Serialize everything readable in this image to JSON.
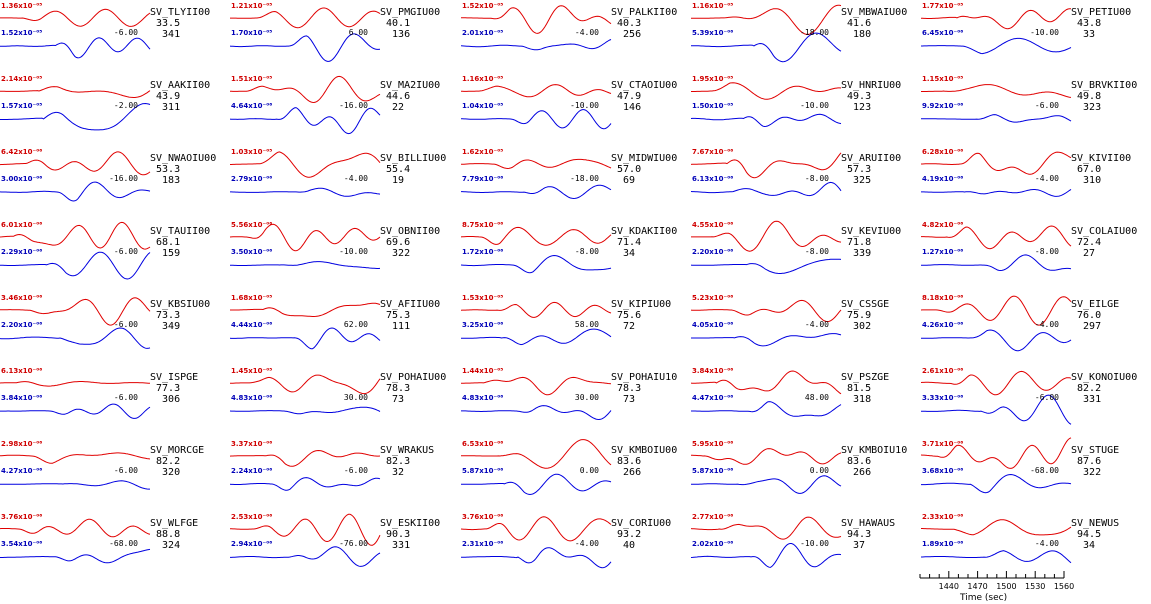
{
  "chart_data": {
    "type": "line",
    "title": "",
    "xlabel": "Time (sec)",
    "ylabel": "",
    "xaxis": {
      "ticks": [
        1440,
        1470,
        1500,
        1530,
        1560
      ],
      "range": [
        1410,
        1560
      ]
    },
    "colors": {
      "observed": "#e00000",
      "synthetic": "#0000e0"
    },
    "stations": [
      {
        "name": "SV_TLYII00",
        "dist": "33.5",
        "az": "341",
        "amp_obs": "1.36x10⁻⁰⁵",
        "amp_syn": "1.52x10⁻⁰⁵",
        "shift": "-6.00",
        "seed": 1
      },
      {
        "name": "SV_PMGIU00",
        "dist": "40.1",
        "az": "136",
        "amp_obs": "1.21x10⁻⁰⁵",
        "amp_syn": "1.70x10⁻⁰⁵",
        "shift": "6.00",
        "seed": 2
      },
      {
        "name": "SV_PALKII00",
        "dist": "40.3",
        "az": "256",
        "amp_obs": "1.52x10⁻⁰⁵",
        "amp_syn": "2.01x10⁻⁰⁵",
        "shift": "-4.00",
        "seed": 3
      },
      {
        "name": "SV_MBWAIU00",
        "dist": "41.6",
        "az": "180",
        "amp_obs": "1.16x10⁻⁰⁵",
        "amp_syn": "5.39x10⁻⁰⁶",
        "shift": "-18.00",
        "seed": 4
      },
      {
        "name": "SV_PETIU00",
        "dist": "43.8",
        "az": "33",
        "amp_obs": "1.77x10⁻⁰⁵",
        "amp_syn": "6.45x10⁻⁰⁶",
        "shift": "-10.00",
        "seed": 5
      },
      {
        "name": "SV_AAKII00",
        "dist": "43.9",
        "az": "311",
        "amp_obs": "2.14x10⁻⁰⁵",
        "amp_syn": "1.57x10⁻⁰⁵",
        "shift": "-2.00",
        "seed": 6
      },
      {
        "name": "SV_MA2IU00",
        "dist": "44.6",
        "az": "22",
        "amp_obs": "1.51x10⁻⁰⁵",
        "amp_syn": "4.64x10⁻⁰⁶",
        "shift": "-16.00",
        "seed": 7
      },
      {
        "name": "SV_CTAOIU00",
        "dist": "47.9",
        "az": "146",
        "amp_obs": "1.16x10⁻⁰⁵",
        "amp_syn": "1.04x10⁻⁰⁵",
        "shift": "-10.00",
        "seed": 8
      },
      {
        "name": "SV_HNRIU00",
        "dist": "49.3",
        "az": "123",
        "amp_obs": "1.95x10⁻⁰⁵",
        "amp_syn": "1.50x10⁻⁰⁵",
        "shift": "-10.00",
        "seed": 9
      },
      {
        "name": "SV_BRVKII00",
        "dist": "49.8",
        "az": "323",
        "amp_obs": "1.15x10⁻⁰⁵",
        "amp_syn": "9.92x10⁻⁰⁶",
        "shift": "-6.00",
        "seed": 10
      },
      {
        "name": "SV_NWAOIU00",
        "dist": "53.3",
        "az": "183",
        "amp_obs": "6.42x10⁻⁰⁶",
        "amp_syn": "3.00x10⁻⁰⁶",
        "shift": "-16.00",
        "seed": 11
      },
      {
        "name": "SV_BILLIU00",
        "dist": "55.4",
        "az": "19",
        "amp_obs": "1.03x10⁻⁰⁵",
        "amp_syn": "2.79x10⁻⁰⁶",
        "shift": "-4.00",
        "seed": 12
      },
      {
        "name": "SV_MIDWIU00",
        "dist": "57.0",
        "az": "69",
        "amp_obs": "1.62x10⁻⁰⁵",
        "amp_syn": "7.79x10⁻⁰⁶",
        "shift": "-18.00",
        "seed": 13
      },
      {
        "name": "SV_ARUII00",
        "dist": "57.3",
        "az": "325",
        "amp_obs": "7.67x10⁻⁰⁶",
        "amp_syn": "6.13x10⁻⁰⁶",
        "shift": "-8.00",
        "seed": 14
      },
      {
        "name": "SV_KIVII00",
        "dist": "67.0",
        "az": "310",
        "amp_obs": "6.28x10⁻⁰⁶",
        "amp_syn": "4.19x10⁻⁰⁶",
        "shift": "-4.00",
        "seed": 15
      },
      {
        "name": "SV_TAUII00",
        "dist": "68.1",
        "az": "159",
        "amp_obs": "6.01x10⁻⁰⁶",
        "amp_syn": "2.29x10⁻⁰⁶",
        "shift": "-6.00",
        "seed": 16
      },
      {
        "name": "SV_OBNII00",
        "dist": "69.6",
        "az": "322",
        "amp_obs": "5.56x10⁻⁰⁶",
        "amp_syn": "3.50x10⁻⁰⁶",
        "shift": "-10.00",
        "seed": 17
      },
      {
        "name": "SV_KDAKII00",
        "dist": "71.4",
        "az": "34",
        "amp_obs": "8.75x10⁻⁰⁶",
        "amp_syn": "1.72x10⁻⁰⁶",
        "shift": "-8.00",
        "seed": 18
      },
      {
        "name": "SV_KEVIU00",
        "dist": "71.8",
        "az": "339",
        "amp_obs": "4.55x10⁻⁰⁶",
        "amp_syn": "2.20x10⁻⁰⁶",
        "shift": "-8.00",
        "seed": 19
      },
      {
        "name": "SV_COLAIU00",
        "dist": "72.4",
        "az": "27",
        "amp_obs": "4.82x10⁻⁰⁶",
        "amp_syn": "1.27x10⁻⁰⁶",
        "shift": "-8.00",
        "seed": 20
      },
      {
        "name": "SV_KBSIU00",
        "dist": "73.3",
        "az": "349",
        "amp_obs": "3.46x10⁻⁰⁶",
        "amp_syn": "2.20x10⁻⁰⁶",
        "shift": "-6.00",
        "seed": 21
      },
      {
        "name": "SV_AFIIU00",
        "dist": "75.3",
        "az": "111",
        "amp_obs": "1.68x10⁻⁰⁵",
        "amp_syn": "4.44x10⁻⁰⁶",
        "shift": "62.00",
        "seed": 22
      },
      {
        "name": "SV_KIPIU00",
        "dist": "75.6",
        "az": "72",
        "amp_obs": "1.53x10⁻⁰⁵",
        "amp_syn": "3.25x10⁻⁰⁶",
        "shift": "58.00",
        "seed": 23
      },
      {
        "name": "SV_CSSGE",
        "dist": "75.9",
        "az": "302",
        "amp_obs": "5.23x10⁻⁰⁶",
        "amp_syn": "4.05x10⁻⁰⁶",
        "shift": "-4.00",
        "seed": 24
      },
      {
        "name": "SV_EILGE",
        "dist": "76.0",
        "az": "297",
        "amp_obs": "8.18x10⁻⁰⁶",
        "amp_syn": "4.26x10⁻⁰⁶",
        "shift": "-4.00",
        "seed": 25
      },
      {
        "name": "SV_ISPGE",
        "dist": "77.3",
        "az": "306",
        "amp_obs": "6.13x10⁻⁰⁶",
        "amp_syn": "3.84x10⁻⁰⁶",
        "shift": "-6.00",
        "seed": 26
      },
      {
        "name": "SV_POHAIU00",
        "dist": "78.3",
        "az": "73",
        "amp_obs": "1.45x10⁻⁰⁵",
        "amp_syn": "4.83x10⁻⁰⁶",
        "shift": "30.00",
        "seed": 27
      },
      {
        "name": "SV_POHAIU10",
        "dist": "78.3",
        "az": "73",
        "amp_obs": "1.44x10⁻⁰⁵",
        "amp_syn": "4.83x10⁻⁰⁶",
        "shift": "30.00",
        "seed": 28
      },
      {
        "name": "SV_PSZGE",
        "dist": "81.5",
        "az": "318",
        "amp_obs": "3.84x10⁻⁰⁶",
        "amp_syn": "4.47x10⁻⁰⁶",
        "shift": "48.00",
        "seed": 29
      },
      {
        "name": "SV_KONOIU00",
        "dist": "82.2",
        "az": "331",
        "amp_obs": "2.61x10⁻⁰⁶",
        "amp_syn": "3.33x10⁻⁰⁶",
        "shift": "-6.00",
        "seed": 30
      },
      {
        "name": "SV_MORCGE",
        "dist": "82.2",
        "az": "320",
        "amp_obs": "2.98x10⁻⁰⁶",
        "amp_syn": "4.27x10⁻⁰⁶",
        "shift": "-6.00",
        "seed": 31
      },
      {
        "name": "SV_WRAKUS",
        "dist": "82.3",
        "az": "32",
        "amp_obs": "3.37x10⁻⁰⁶",
        "amp_syn": "2.24x10⁻⁰⁶",
        "shift": "-6.00",
        "seed": 32
      },
      {
        "name": "SV_KMBOIU00",
        "dist": "83.6",
        "az": "266",
        "amp_obs": "6.53x10⁻⁰⁶",
        "amp_syn": "5.87x10⁻⁰⁶",
        "shift": "0.00",
        "seed": 33
      },
      {
        "name": "SV_KMBOIU10",
        "dist": "83.6",
        "az": "266",
        "amp_obs": "5.95x10⁻⁰⁶",
        "amp_syn": "5.87x10⁻⁰⁶",
        "shift": "0.00",
        "seed": 34
      },
      {
        "name": "SV_STUGE",
        "dist": "87.6",
        "az": "322",
        "amp_obs": "3.71x10⁻⁰⁶",
        "amp_syn": "3.68x10⁻⁰⁶",
        "shift": "-68.00",
        "seed": 35
      },
      {
        "name": "SV_WLFGE",
        "dist": "88.8",
        "az": "324",
        "amp_obs": "3.76x10⁻⁰⁶",
        "amp_syn": "3.54x10⁻⁰⁶",
        "shift": "-68.00",
        "seed": 36
      },
      {
        "name": "SV_ESKII00",
        "dist": "90.3",
        "az": "331",
        "amp_obs": "2.53x10⁻⁰⁶",
        "amp_syn": "2.94x10⁻⁰⁶",
        "shift": "-76.00",
        "seed": 37
      },
      {
        "name": "SV_CORIU00",
        "dist": "93.2",
        "az": "40",
        "amp_obs": "3.76x10⁻⁰⁶",
        "amp_syn": "2.31x10⁻⁰⁶",
        "shift": "-4.00",
        "seed": 38
      },
      {
        "name": "SV_HAWAUS",
        "dist": "94.3",
        "az": "37",
        "amp_obs": "2.77x10⁻⁰⁶",
        "amp_syn": "2.02x10⁻⁰⁶",
        "shift": "-10.00",
        "seed": 39
      },
      {
        "name": "SV_NEWUS",
        "dist": "94.5",
        "az": "34",
        "amp_obs": "2.33x10⁻⁰⁶",
        "amp_syn": "1.89x10⁻⁰⁶",
        "shift": "-4.00",
        "seed": 40
      }
    ]
  }
}
